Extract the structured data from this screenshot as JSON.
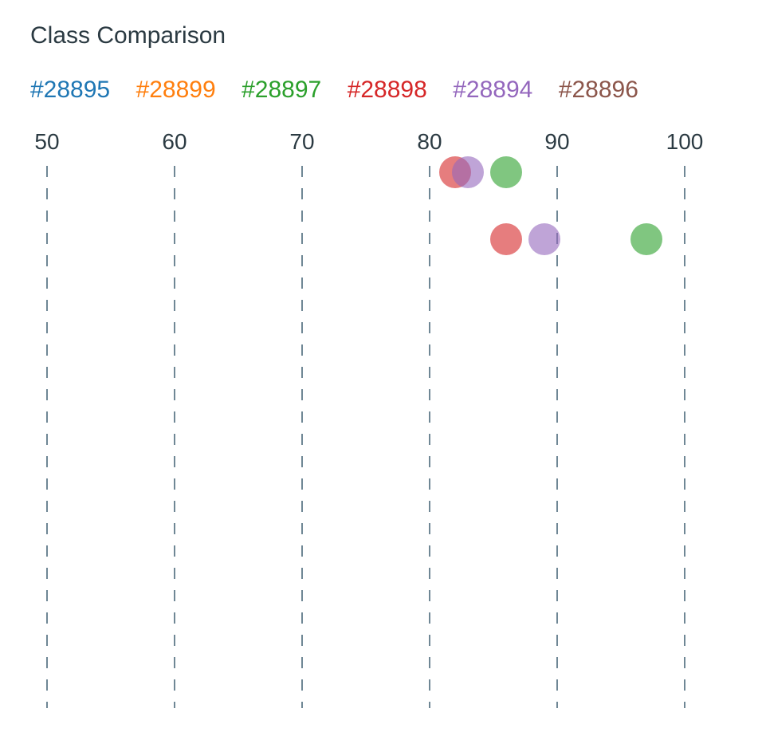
{
  "chart_data": {
    "type": "scatter",
    "title": "Class Comparison",
    "xlim": [
      50,
      100
    ],
    "x_ticks": [
      "50",
      "60",
      "70",
      "80",
      "90",
      "100"
    ],
    "grid": true,
    "legend_position": "top",
    "series": [
      {
        "name": "#28895",
        "color": "#1f77b4",
        "points": []
      },
      {
        "name": "#28899",
        "color": "#ff7f0e",
        "points": []
      },
      {
        "name": "#28897",
        "color": "#2ca02c",
        "points": [
          {
            "row": 0,
            "x": 86
          },
          {
            "row": 1,
            "x": 97
          }
        ]
      },
      {
        "name": "#28898",
        "color": "#d62728",
        "points": [
          {
            "row": 0,
            "x": 82
          },
          {
            "row": 1,
            "x": 86
          }
        ]
      },
      {
        "name": "#28894",
        "color": "#9467bd",
        "points": [
          {
            "row": 0,
            "x": 83
          },
          {
            "row": 1,
            "x": 89
          }
        ]
      },
      {
        "name": "#28896",
        "color": "#8c564b",
        "points": []
      }
    ]
  }
}
